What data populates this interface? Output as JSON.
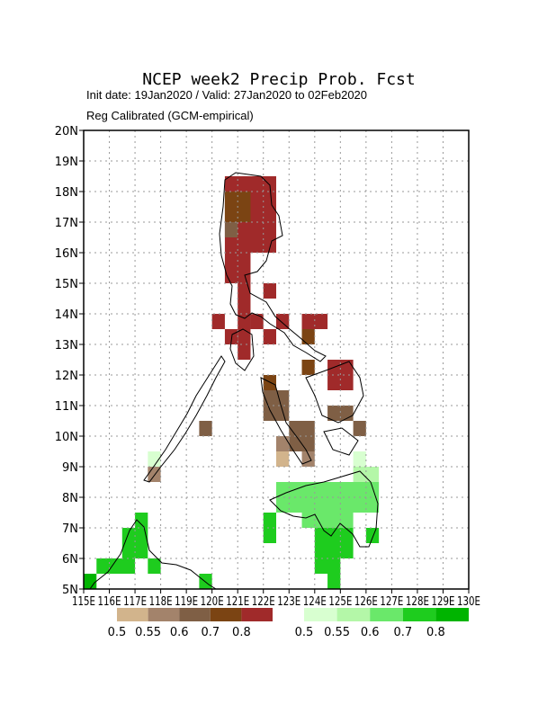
{
  "chart_data": {
    "type": "grid_map",
    "title": "NCEP week2 Precip Prob. Fcst",
    "subtitle": "Init date: 19Jan2020 / Valid: 27Jan2020 to 02Feb2020",
    "note": "Reg Calibrated (GCM-empirical)",
    "xlim": [
      115,
      130
    ],
    "ylim": [
      5,
      20
    ],
    "xticks": [
      {
        "value": 115,
        "label": "115E"
      },
      {
        "value": 116,
        "label": "116E"
      },
      {
        "value": 117,
        "label": "117E"
      },
      {
        "value": 118,
        "label": "118E"
      },
      {
        "value": 119,
        "label": "119E"
      },
      {
        "value": 120,
        "label": "120E"
      },
      {
        "value": 121,
        "label": "121E"
      },
      {
        "value": 122,
        "label": "122E"
      },
      {
        "value": 123,
        "label": "123E"
      },
      {
        "value": 124,
        "label": "124E"
      },
      {
        "value": 125,
        "label": "125E"
      },
      {
        "value": 126,
        "label": "126E"
      },
      {
        "value": 127,
        "label": "127E"
      },
      {
        "value": 128,
        "label": "128E"
      },
      {
        "value": 129,
        "label": "129E"
      },
      {
        "value": 130,
        "label": "130E"
      }
    ],
    "yticks": [
      {
        "value": 5,
        "label": "5N"
      },
      {
        "value": 6,
        "label": "6N"
      },
      {
        "value": 7,
        "label": "7N"
      },
      {
        "value": 8,
        "label": "8N"
      },
      {
        "value": 9,
        "label": "9N"
      },
      {
        "value": 10,
        "label": "10N"
      },
      {
        "value": 11,
        "label": "11N"
      },
      {
        "value": 12,
        "label": "12N"
      },
      {
        "value": 13,
        "label": "13N"
      },
      {
        "value": 14,
        "label": "14N"
      },
      {
        "value": 15,
        "label": "15N"
      },
      {
        "value": 16,
        "label": "16N"
      },
      {
        "value": 17,
        "label": "17N"
      },
      {
        "value": 18,
        "label": "18N"
      },
      {
        "value": 19,
        "label": "19N"
      },
      {
        "value": 20,
        "label": "20N"
      }
    ],
    "grid": true,
    "legends": {
      "dry": {
        "levels": [
          0.5,
          0.55,
          0.6,
          0.7,
          0.8
        ],
        "colors": [
          "#d2b48c",
          "#a3836b",
          "#7f5f45",
          "#7b4413",
          "#a02a2a"
        ]
      },
      "wet": {
        "levels": [
          0.5,
          0.55,
          0.6,
          0.7,
          0.8
        ],
        "colors": [
          "#d8ffd0",
          "#b4f7a8",
          "#6ae86a",
          "#1ecc1e",
          "#00b400"
        ]
      }
    },
    "dry_cells": [
      {
        "lon": [
          120.5,
          122.5
        ],
        "lat": [
          16,
          18.5
        ],
        "value": 0.8
      },
      {
        "lon": [
          120.5,
          121.5
        ],
        "lat": [
          15,
          16
        ],
        "value": 0.8
      },
      {
        "lon": [
          121,
          121.5
        ],
        "lat": [
          12.5,
          15
        ],
        "value": 0.8
      },
      {
        "lon": [
          120,
          120.5
        ],
        "lat": [
          13.5,
          14
        ],
        "value": 0.8
      },
      {
        "lon": [
          120.5,
          121
        ],
        "lat": [
          13,
          13.5
        ],
        "value": 0.8
      },
      {
        "lon": [
          121.5,
          122
        ],
        "lat": [
          13.5,
          14
        ],
        "value": 0.8
      },
      {
        "lon": [
          122,
          122.5
        ],
        "lat": [
          14.5,
          15
        ],
        "value": 0.8
      },
      {
        "lon": [
          122.5,
          123
        ],
        "lat": [
          13.5,
          14
        ],
        "value": 0.8
      },
      {
        "lon": [
          122,
          122.5
        ],
        "lat": [
          13,
          13.5
        ],
        "value": 0.8
      },
      {
        "lon": [
          123.5,
          124.5
        ],
        "lat": [
          13.5,
          14
        ],
        "value": 0.8
      },
      {
        "lon": [
          124.5,
          125.5
        ],
        "lat": [
          11.5,
          12.5
        ],
        "value": 0.8
      },
      {
        "lon": [
          120.5,
          121.5
        ],
        "lat": [
          17,
          18
        ],
        "value": 0.7
      },
      {
        "lon": [
          122,
          122.5
        ],
        "lat": [
          11.5,
          12
        ],
        "value": 0.7
      },
      {
        "lon": [
          123.5,
          124
        ],
        "lat": [
          12,
          12.5
        ],
        "value": 0.7
      },
      {
        "lon": [
          123.5,
          124
        ],
        "lat": [
          13,
          13.5
        ],
        "value": 0.7
      },
      {
        "lon": [
          120.5,
          121
        ],
        "lat": [
          16.5,
          17
        ],
        "value": 0.6
      },
      {
        "lon": [
          122,
          123
        ],
        "lat": [
          10.5,
          11.5
        ],
        "value": 0.6
      },
      {
        "lon": [
          124.5,
          125.5
        ],
        "lat": [
          10.5,
          11
        ],
        "value": 0.6
      },
      {
        "lon": [
          123,
          124
        ],
        "lat": [
          9.5,
          10.5
        ],
        "value": 0.6
      },
      {
        "lon": [
          119.5,
          120
        ],
        "lat": [
          10,
          10.5
        ],
        "value": 0.6
      },
      {
        "lon": [
          125.5,
          126
        ],
        "lat": [
          10,
          10.5
        ],
        "value": 0.6
      },
      {
        "lon": [
          117.5,
          118
        ],
        "lat": [
          8.5,
          9
        ],
        "value": 0.55
      },
      {
        "lon": [
          122.5,
          123
        ],
        "lat": [
          9.5,
          10
        ],
        "value": 0.55
      },
      {
        "lon": [
          123.5,
          124
        ],
        "lat": [
          9,
          9.5
        ],
        "value": 0.55
      },
      {
        "lon": [
          122.5,
          123
        ],
        "lat": [
          9,
          9.5
        ],
        "value": 0.5
      }
    ],
    "wet_cells": [
      {
        "lon": [
          125.5,
          126
        ],
        "lat": [
          9,
          9.5
        ],
        "value": 0.5
      },
      {
        "lon": [
          117.5,
          118
        ],
        "lat": [
          9,
          9.5
        ],
        "value": 0.5
      },
      {
        "lon": [
          125.5,
          126.5
        ],
        "lat": [
          8.5,
          9
        ],
        "value": 0.55
      },
      {
        "lon": [
          122.5,
          126.5
        ],
        "lat": [
          7.5,
          8.5
        ],
        "value": 0.6
      },
      {
        "lon": [
          123.5,
          125.5
        ],
        "lat": [
          7,
          7.5
        ],
        "value": 0.6
      },
      {
        "lon": [
          122,
          122.5
        ],
        "lat": [
          6.5,
          7.5
        ],
        "value": 0.7
      },
      {
        "lon": [
          124,
          125.5
        ],
        "lat": [
          6,
          7
        ],
        "value": 0.7
      },
      {
        "lon": [
          126,
          126.5
        ],
        "lat": [
          6.5,
          7
        ],
        "value": 0.7
      },
      {
        "lon": [
          124,
          125
        ],
        "lat": [
          5.5,
          6
        ],
        "value": 0.7
      },
      {
        "lon": [
          124.5,
          125
        ],
        "lat": [
          5,
          5.5
        ],
        "value": 0.7
      },
      {
        "lon": [
          116.5,
          117.5
        ],
        "lat": [
          6,
          7
        ],
        "value": 0.7
      },
      {
        "lon": [
          117,
          117.5
        ],
        "lat": [
          7,
          7.5
        ],
        "value": 0.7
      },
      {
        "lon": [
          115.5,
          117
        ],
        "lat": [
          5.5,
          6
        ],
        "value": 0.7
      },
      {
        "lon": [
          115,
          115.5
        ],
        "lat": [
          5,
          5.5
        ],
        "value": 0.8
      },
      {
        "lon": [
          117.5,
          118
        ],
        "lat": [
          5.5,
          6
        ],
        "value": 0.7
      },
      {
        "lon": [
          119.5,
          120
        ],
        "lat": [
          5,
          5.5
        ],
        "value": 0.7
      }
    ]
  }
}
